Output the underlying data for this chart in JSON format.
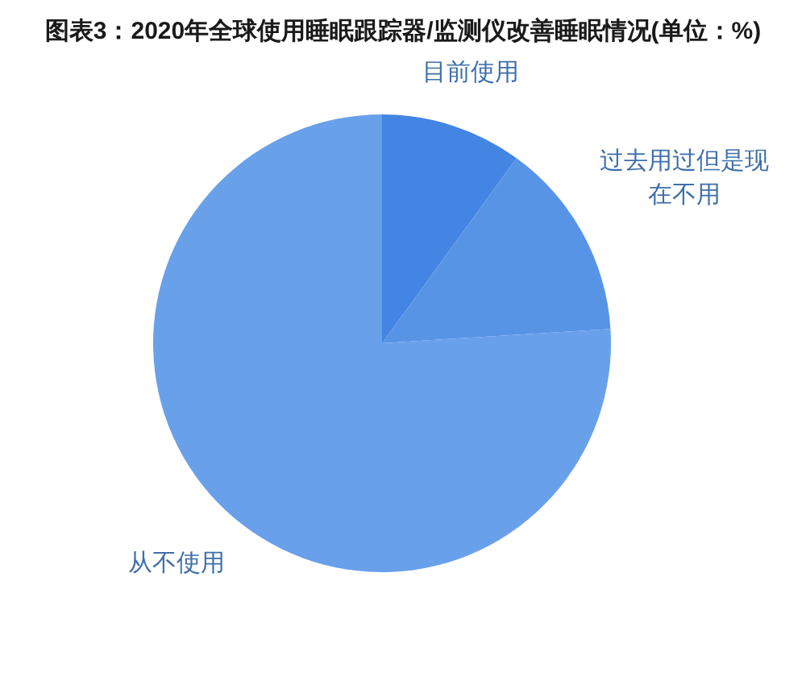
{
  "chart_data": {
    "type": "pie",
    "title": "图表3：2020年全球使用睡眠跟踪器/监测仪改善睡眠情况(单位：%)",
    "categories": [
      "目前使用",
      "过去用过但是现在不用",
      "从不使用"
    ],
    "values": [
      10,
      14,
      76
    ],
    "colors": [
      "#4285e3",
      "#5894e6",
      "#69a0ea"
    ]
  }
}
